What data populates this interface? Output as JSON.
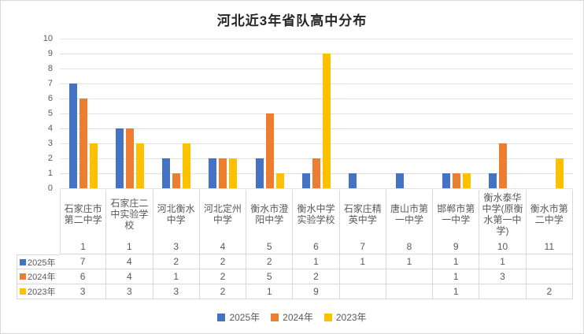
{
  "chart_data": {
    "type": "bar",
    "title": "河北近3年省队高中分布",
    "categories": [
      "石家庄市第二中学",
      "石家庄二中实验学校",
      "河北衡水中学",
      "河北定州中学",
      "衡水市澄阳中学",
      "衡水中学实验学校",
      "石家庄精英中学",
      "唐山市第一中学",
      "邯郸市第一中学",
      "衡水泰华中学(原衡水第一中学)",
      "衡水市第二中学"
    ],
    "ranks": [
      1,
      1,
      3,
      4,
      5,
      6,
      7,
      8,
      9,
      10,
      11
    ],
    "series": [
      {
        "name": "2025年",
        "color": "#4472C4",
        "values": [
          7,
          4,
          2,
          2,
          2,
          1,
          1,
          1,
          1,
          1,
          null
        ]
      },
      {
        "name": "2024年",
        "color": "#ED7D31",
        "values": [
          6,
          4,
          1,
          2,
          5,
          2,
          null,
          null,
          1,
          3,
          null
        ]
      },
      {
        "name": "2023年",
        "color": "#FFC000",
        "values": [
          3,
          3,
          3,
          2,
          1,
          9,
          null,
          null,
          1,
          null,
          2
        ]
      }
    ],
    "ylim": [
      0,
      10
    ],
    "yticks": [
      0,
      1,
      2,
      3,
      4,
      5,
      6,
      7,
      8,
      9,
      10
    ],
    "xlabel": "",
    "ylabel": "",
    "grid": true,
    "legend_position": "bottom"
  },
  "colors": {
    "grid_line": "#E2E2E2",
    "table_border": "#D9D9D9",
    "axis_text": "#595959",
    "title_text": "#262626",
    "background": "#FFFFFF"
  }
}
